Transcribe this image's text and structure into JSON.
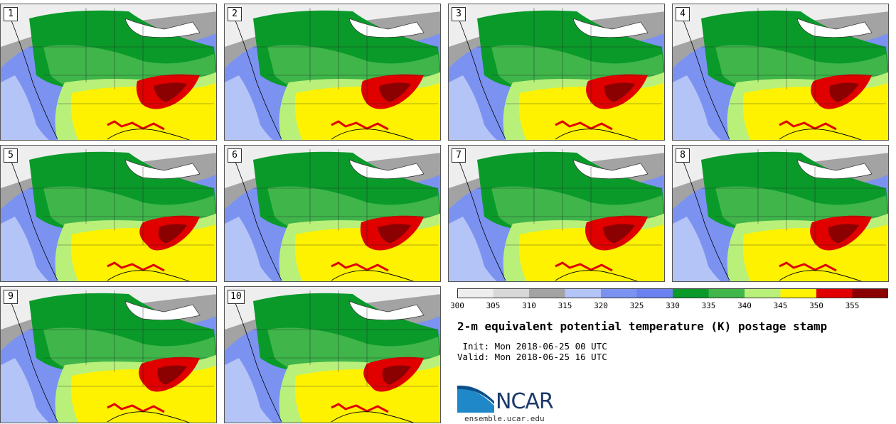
{
  "panels": [
    {
      "label": "1"
    },
    {
      "label": "2"
    },
    {
      "label": "3"
    },
    {
      "label": "4"
    },
    {
      "label": "5"
    },
    {
      "label": "6"
    },
    {
      "label": "7"
    },
    {
      "label": "8"
    },
    {
      "label": "9"
    },
    {
      "label": "10"
    }
  ],
  "colorbar": {
    "ticks": [
      "300",
      "305",
      "310",
      "315",
      "320",
      "325",
      "330",
      "335",
      "340",
      "345",
      "350",
      "355"
    ],
    "colors": [
      "#eeeeee",
      "#d8d8d8",
      "#a3a3a3",
      "#b4c4f7",
      "#7b92f0",
      "#6a82f0",
      "#0a9a2a",
      "#3fb54a",
      "#b8f07a",
      "#fff200",
      "#e00000",
      "#8b0000"
    ]
  },
  "title": "2-m equivalent potential temperature (K) postage stamp",
  "init": " Init: Mon 2018-06-25 00 UTC",
  "valid": "Valid: Mon 2018-06-25 16 UTC",
  "logo": {
    "text": "NCAR",
    "site": "ensemble.ucar.edu"
  }
}
